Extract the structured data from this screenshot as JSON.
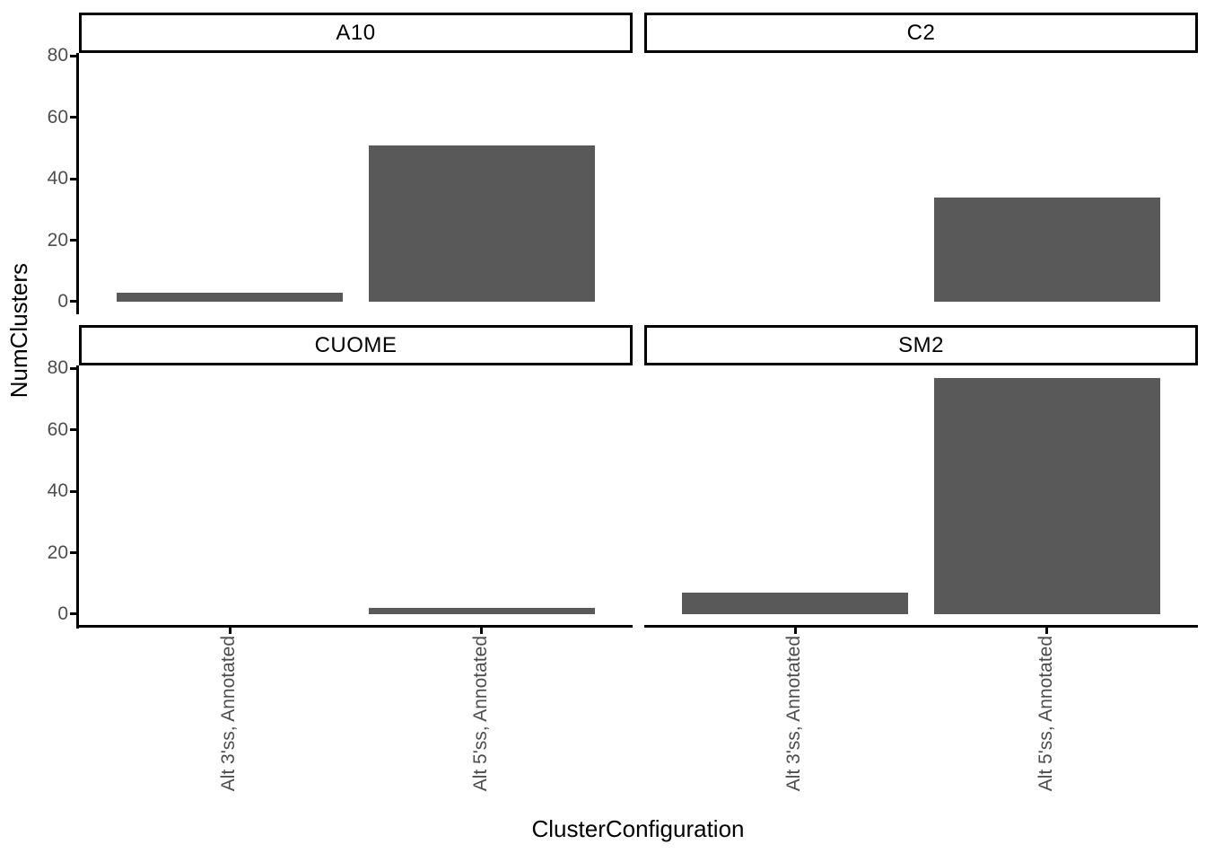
{
  "chart_data": {
    "type": "bar",
    "title": "",
    "xlabel": "ClusterConfiguration",
    "ylabel": "NumClusters",
    "categories": [
      "Alt 3'ss, Annotated",
      "Alt 5'ss, Annotated"
    ],
    "facets": [
      {
        "label": "A10",
        "values": [
          3,
          51
        ]
      },
      {
        "label": "C2",
        "values": [
          0,
          34
        ]
      },
      {
        "label": "CUOME",
        "values": [
          0,
          2
        ]
      },
      {
        "label": "SM2",
        "values": [
          7,
          77
        ]
      }
    ],
    "yticks": [
      0,
      20,
      40,
      60,
      80
    ],
    "ylim": [
      -4.1,
      81
    ],
    "grid": false,
    "legend": false,
    "bar_color": "#595959",
    "axis_text_color": "#4d4d4d",
    "axis_line_color": "#000000",
    "strip_background": "#ffffff",
    "strip_border_color": "#000000"
  }
}
